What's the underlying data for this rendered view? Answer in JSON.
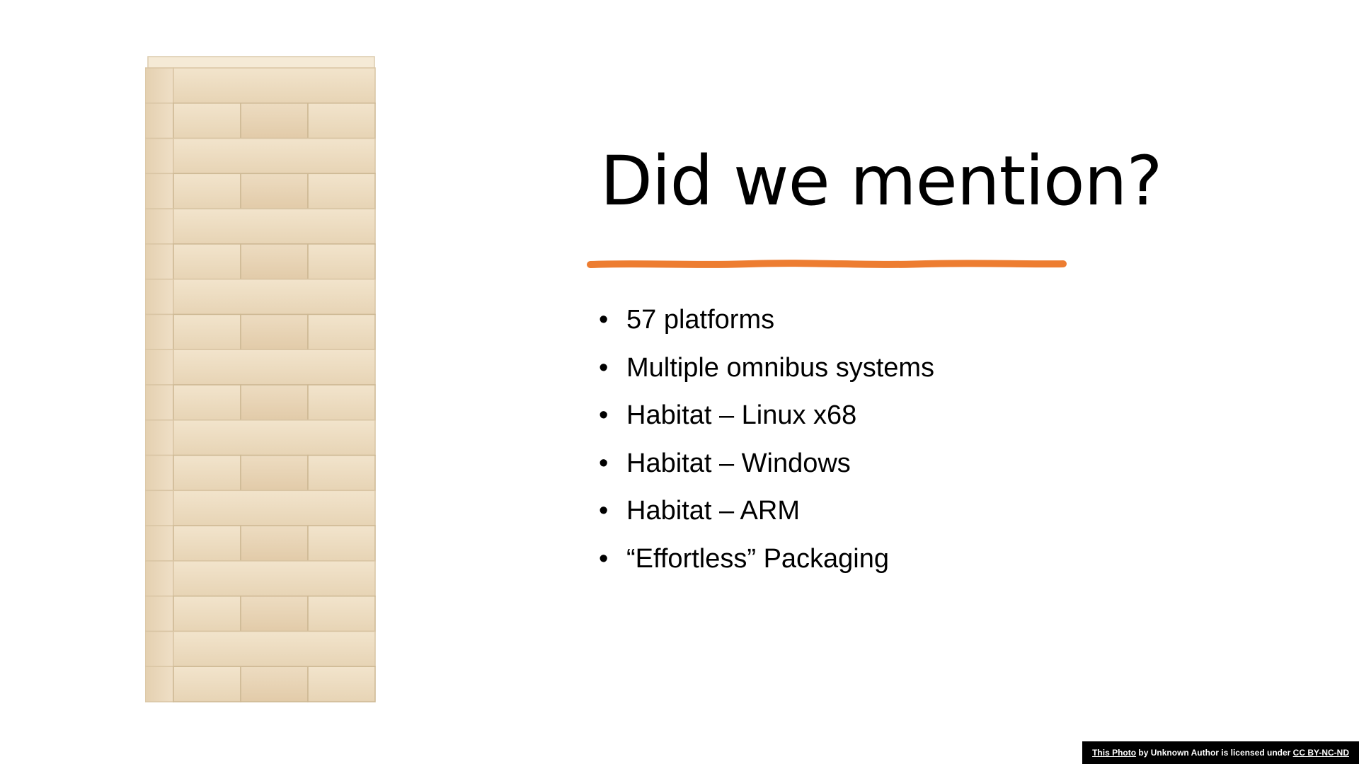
{
  "slide": {
    "title": "Did we mention?",
    "accent_color": "#ED7D31",
    "bullet_glyph": "•",
    "bullets": [
      "57 platforms",
      "Multiple omnibus systems",
      "Habitat – Linux x68",
      "Habitat – Windows",
      "Habitat – ARM",
      "“Effortless” Packaging"
    ]
  },
  "image": {
    "subject": "jenga-tower-icon"
  },
  "attribution": {
    "photo_link": "This Photo",
    "middle_text": " by Unknown Author is licensed under ",
    "license_link": "CC BY-NC-ND"
  }
}
